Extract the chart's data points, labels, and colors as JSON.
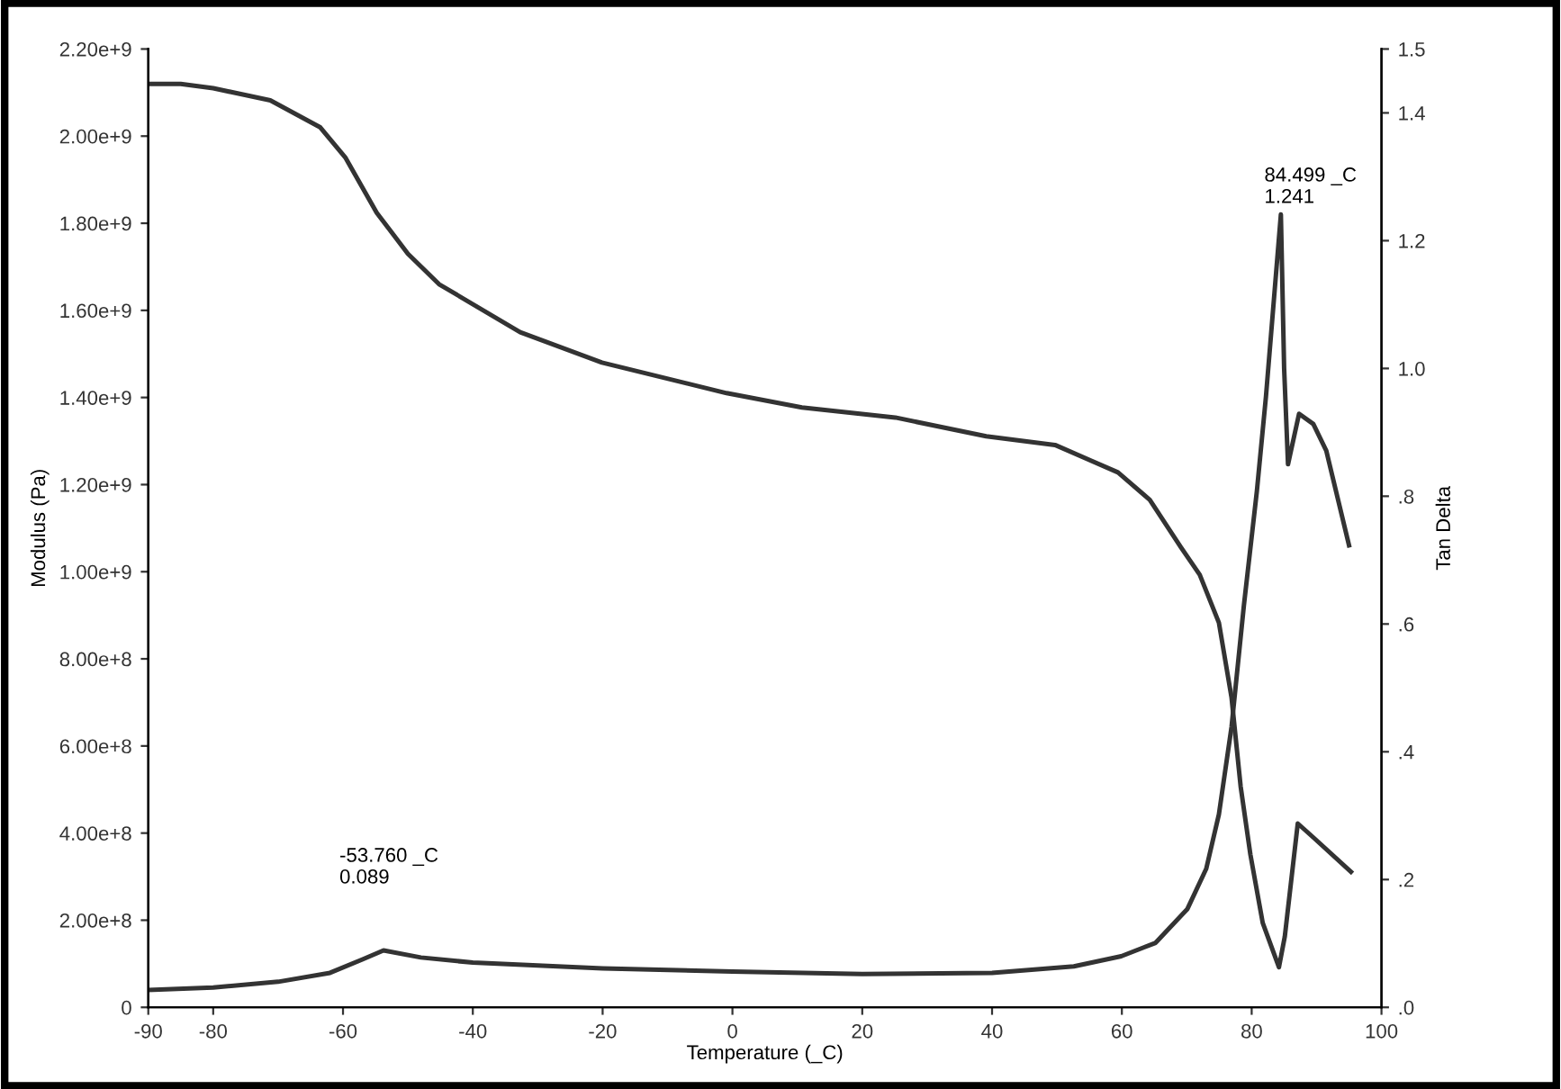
{
  "chart_data": {
    "type": "line",
    "xlabel": "Temperature (_C)",
    "ylabel": "Modulus (Pa)",
    "y2label": "Tan Delta",
    "xlim": [
      -90,
      100
    ],
    "xticks": [
      -90,
      -80,
      -60,
      -40,
      -20,
      0,
      20,
      40,
      60,
      80,
      100
    ],
    "ylim": [
      0,
      2200000000
    ],
    "yticks": [
      {
        "value": 0,
        "label": "0"
      },
      {
        "value": 200000000,
        "label": "2.00e+8"
      },
      {
        "value": 400000000,
        "label": "4.00e+8"
      },
      {
        "value": 600000000,
        "label": "6.00e+8"
      },
      {
        "value": 800000000,
        "label": "8.00e+8"
      },
      {
        "value": 1000000000,
        "label": "1.00e+9"
      },
      {
        "value": 1200000000,
        "label": "1.20e+9"
      },
      {
        "value": 1400000000,
        "label": "1.40e+9"
      },
      {
        "value": 1600000000,
        "label": "1.60e+9"
      },
      {
        "value": 1800000000,
        "label": "1.80e+9"
      },
      {
        "value": 2000000000,
        "label": "2.00e+9"
      },
      {
        "value": 2200000000,
        "label": "2.20e+9"
      }
    ],
    "y2lim": [
      0,
      1.5
    ],
    "y2ticks": [
      {
        "value": 0,
        "label": ".0"
      },
      {
        "value": 0.2,
        "label": ".2"
      },
      {
        "value": 0.4,
        "label": ".4"
      },
      {
        "value": 0.6,
        "label": ".6"
      },
      {
        "value": 0.8,
        "label": ".8"
      },
      {
        "value": 1.0,
        "label": "1.0"
      },
      {
        "value": 1.2,
        "label": "1.2"
      },
      {
        "value": 1.4,
        "label": "1.4"
      },
      {
        "value": 1.5,
        "label": "1.5"
      }
    ],
    "grid": false,
    "legend": false,
    "marker": "none",
    "line_style": "solid",
    "series": [
      {
        "color": "#333333",
        "x": [
          -90,
          -85,
          -80,
          -71.2,
          -63.5,
          -59.6,
          -54.8,
          -50.0,
          -45.2,
          -32.7,
          -20.1,
          -0.9,
          10.7,
          25.1,
          39.1,
          49.7,
          59.4,
          64.3,
          69.1,
          72.0,
          74.95,
          76.9,
          78.3,
          79.8,
          81.7,
          84.2,
          85.1,
          87.1,
          89.5,
          95.3
        ],
        "values": [
          2120000000,
          2120000000,
          2110000000,
          2082000000,
          2020000000,
          1950000000,
          1824000000,
          1730000000,
          1660000000,
          1550000000,
          1480000000,
          1410000000,
          1377000000,
          1354000000,
          1311000000,
          1291000000,
          1228000000,
          1165000000,
          1056000000,
          993000000,
          883000000,
          711000000,
          507000000,
          351000000,
          194000000,
          92000000,
          162000000,
          422000000,
          390000000,
          311000000
        ]
      },
      {
        "color": "#333333",
        "axis": "y2",
        "x": [
          -90,
          -80,
          -70,
          -62,
          -57,
          -53.76,
          -48,
          -40,
          -20,
          0,
          20,
          40,
          52.6,
          59.9,
          65.2,
          70.1,
          73.0,
          74.95,
          76.9,
          78.8,
          80.8,
          82.2,
          84.5,
          85.0,
          85.6,
          87.3,
          89.5,
          91.5,
          95.0
        ],
        "values": [
          0.027,
          0.031,
          0.04,
          0.054,
          0.075,
          0.089,
          0.078,
          0.07,
          0.061,
          0.056,
          0.052,
          0.054,
          0.064,
          0.08,
          0.101,
          0.154,
          0.217,
          0.302,
          0.439,
          0.629,
          0.808,
          0.956,
          1.241,
          1.0,
          0.85,
          0.929,
          0.913,
          0.871,
          0.723
        ]
      }
    ],
    "annotations": [
      "-53.760 _C\n0.089",
      "84.499 _C\n1.241"
    ]
  }
}
